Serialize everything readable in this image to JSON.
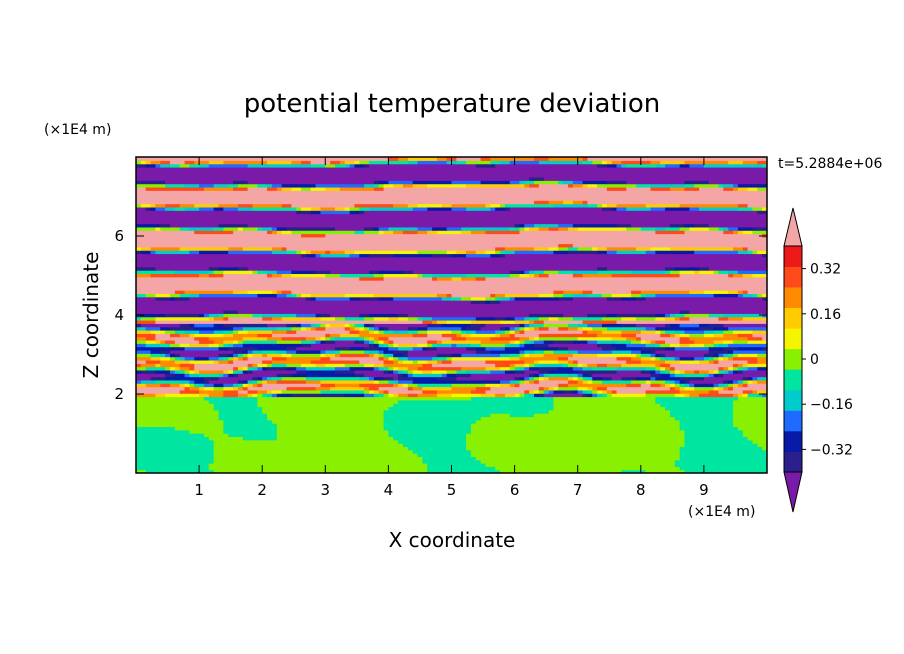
{
  "chart_data": {
    "type": "heatmap",
    "title": "potential temperature deviation",
    "xlabel": "X coordinate",
    "ylabel": "Z coordinate",
    "x_unit": "(×1E4 m)",
    "y_unit": "(×1E4 m)",
    "time_label": "t=5.2884e+06",
    "xlim": [
      0,
      10
    ],
    "ylim": [
      0,
      8
    ],
    "x_ticks": [
      1,
      2,
      3,
      4,
      5,
      6,
      7,
      8,
      9
    ],
    "y_ticks": [
      2,
      4,
      6
    ],
    "colorbar": {
      "levels": [
        -0.4,
        -0.32,
        -0.24,
        -0.16,
        -0.08,
        0,
        0.08,
        0.16,
        0.24,
        0.32,
        0.4
      ],
      "tick_labels": [
        {
          "value": 0.32,
          "label": "0.32"
        },
        {
          "value": 0.16,
          "label": "0.16"
        },
        {
          "value": 0,
          "label": "0"
        },
        {
          "value": -0.16,
          "label": "−0.16"
        },
        {
          "value": -0.32,
          "label": "−0.32"
        }
      ],
      "colors": [
        "#2a1f8c",
        "#0a1aa8",
        "#1f6bff",
        "#00cccc",
        "#00e6a0",
        "#88f000",
        "#f5f500",
        "#ffcc00",
        "#ff8c00",
        "#ff4a1a",
        "#ee1a1a"
      ],
      "below_color": "#7a1aa8",
      "above_color": "#f4a6a6"
    },
    "regions": [
      {
        "z_range": [
          0,
          1.9
        ],
        "description": "mostly near-zero values (0 to 0.08) with arched plume patches of 0 to -0.08"
      },
      {
        "z_range": [
          1.9,
          3.8
        ],
        "description": "mixed turbulent layer spanning full range, many contours from -0.32 to 0.32"
      },
      {
        "z_range": [
          3.8,
          8
        ],
        "description": "alternating horizontal bands of values above 0.4 and below -0.4"
      }
    ]
  }
}
